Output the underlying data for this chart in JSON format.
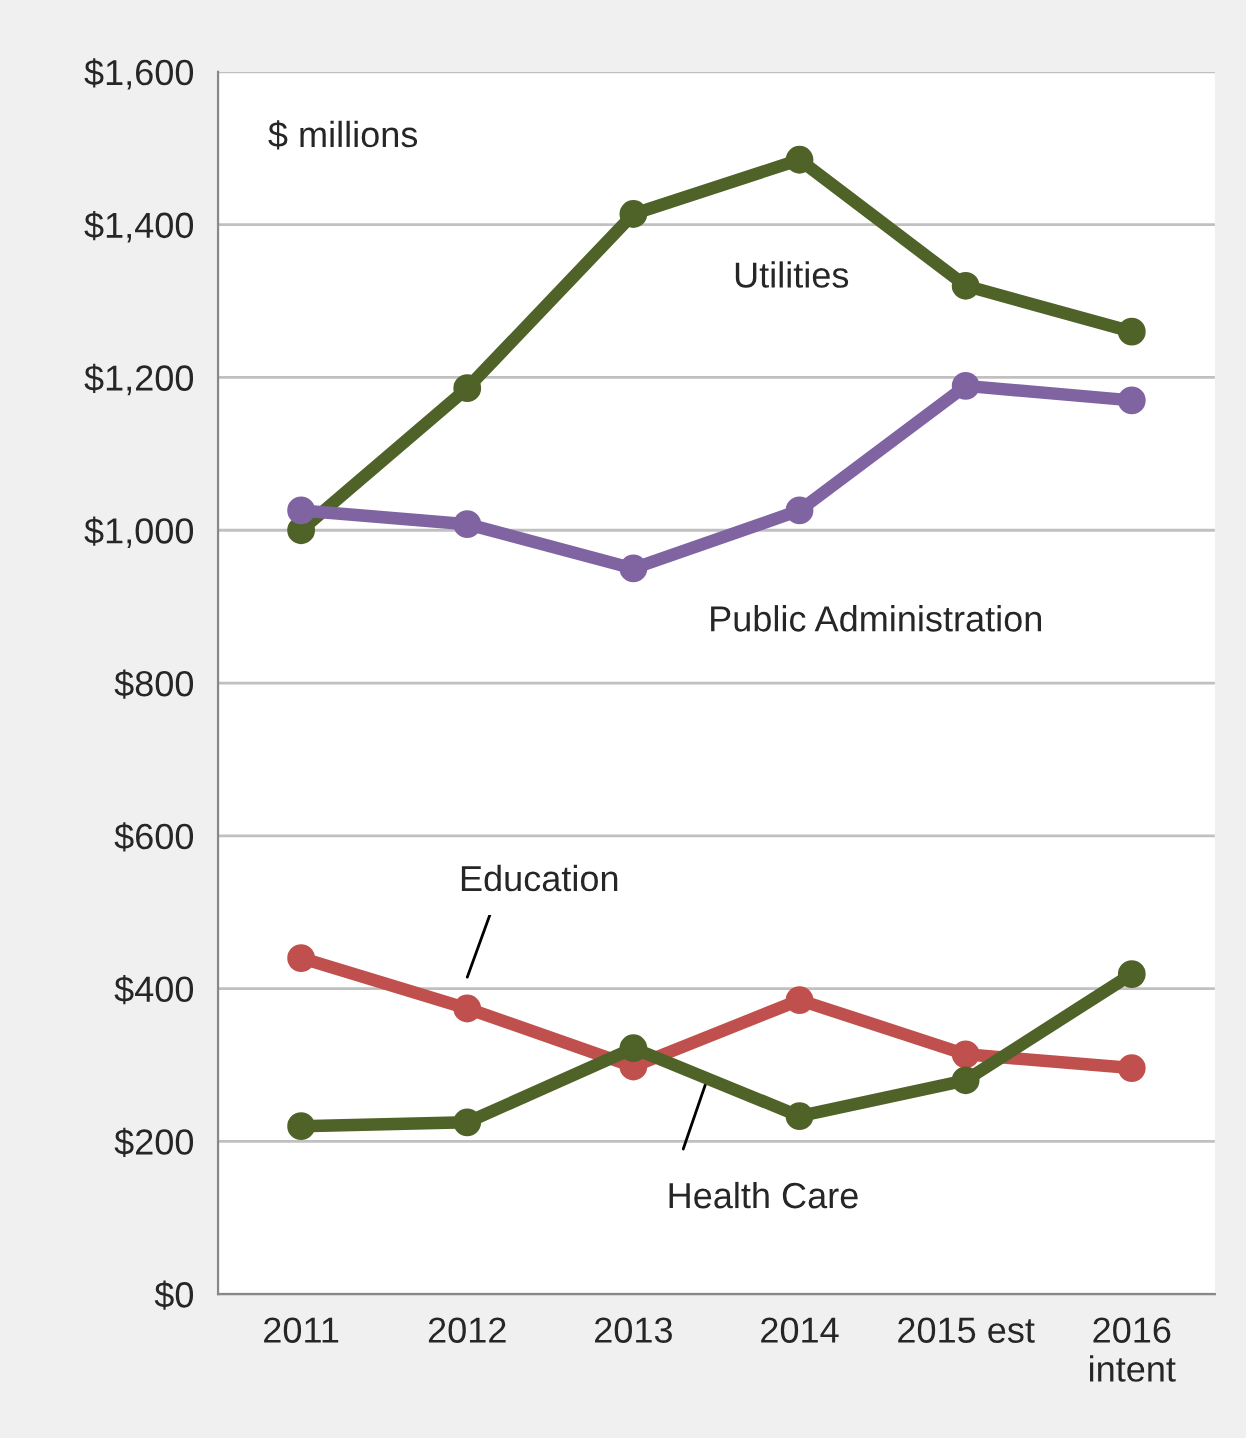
{
  "chart_data": {
    "type": "line",
    "categories": [
      "2011",
      "2012",
      "2013",
      "2014",
      "2015 est",
      "2016\nintent"
    ],
    "series": [
      {
        "name": "Utilities",
        "color": "#4f6228",
        "values": [
          1000,
          1186,
          1414,
          1485,
          1320,
          1260
        ]
      },
      {
        "name": "Public Administration",
        "color": "#8064a2",
        "values": [
          1026,
          1008,
          950,
          1026,
          1189,
          1170
        ]
      },
      {
        "name": "Education",
        "color": "#c0504d",
        "values": [
          440,
          374,
          298,
          385,
          314,
          296
        ]
      },
      {
        "name": "Health Care",
        "color": "#4f6228",
        "values": [
          220,
          225,
          322,
          233,
          280,
          419
        ]
      }
    ],
    "ylim": [
      0,
      1600
    ],
    "yticks": [
      {
        "value": 0,
        "label": "$0"
      },
      {
        "value": 200,
        "label": "$200"
      },
      {
        "value": 400,
        "label": "$400"
      },
      {
        "value": 600,
        "label": "$600"
      },
      {
        "value": 800,
        "label": "$800"
      },
      {
        "value": 1000,
        "label": "$1,000"
      },
      {
        "value": 1200,
        "label": "$1,200"
      },
      {
        "value": 1400,
        "label": "$1,400"
      },
      {
        "value": 1600,
        "label": "$1,600"
      }
    ],
    "annotations": [
      "$ millions"
    ],
    "grid": "y",
    "legend": false,
    "marker": "circle",
    "line_style": "solid"
  }
}
